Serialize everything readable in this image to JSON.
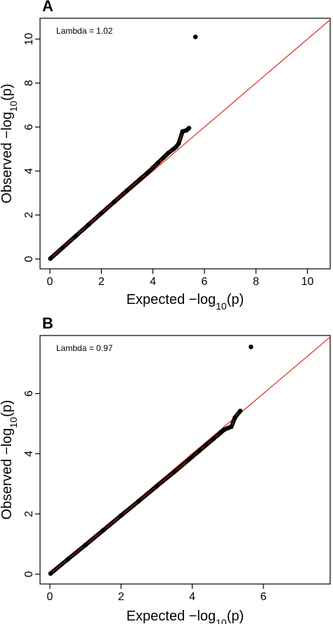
{
  "chart_data": [
    {
      "type": "scatter",
      "panel_label": "A",
      "annotation": "Lambda = 1.02",
      "xlabel_main": "Expected",
      "ylabel_main": "Observed",
      "axis_expression": {
        "prefix": "−log",
        "subscript": "10",
        "suffix": "(p)"
      },
      "xlim": [
        0,
        10.5
      ],
      "ylim": [
        0,
        10.5
      ],
      "xticks": [
        0,
        2,
        4,
        6,
        8,
        10
      ],
      "yticks": [
        0,
        2,
        4,
        6,
        8,
        10
      ],
      "reference_line": {
        "type": "identity",
        "color": "#e0281e"
      },
      "point_color": "#000000",
      "series": [
        {
          "x": [
            0.02,
            0.5,
            1.0,
            1.5,
            2.0,
            2.5,
            3.0,
            3.5,
            3.8,
            4.0,
            4.2,
            4.4,
            4.6,
            4.8,
            4.9,
            5.0,
            5.15,
            5.3,
            5.4,
            5.65
          ],
          "y": [
            0.02,
            0.52,
            1.04,
            1.56,
            2.08,
            2.6,
            3.12,
            3.63,
            3.93,
            4.15,
            4.38,
            4.6,
            4.82,
            5.0,
            5.1,
            5.25,
            5.8,
            5.85,
            5.95,
            10.1
          ]
        }
      ]
    },
    {
      "type": "scatter",
      "panel_label": "B",
      "annotation": "Lambda = 0.97",
      "xlabel_main": "Expected",
      "ylabel_main": "Observed",
      "axis_expression": {
        "prefix": "−log",
        "subscript": "10",
        "suffix": "(p)"
      },
      "xlim": [
        0,
        7.6
      ],
      "ylim": [
        0,
        7.6
      ],
      "xticks": [
        0,
        2,
        4,
        6
      ],
      "yticks": [
        0,
        2,
        4,
        6
      ],
      "reference_line": {
        "type": "identity",
        "color": "#e0281e"
      },
      "point_color": "#000000",
      "series": [
        {
          "x": [
            0.02,
            0.5,
            1.0,
            1.5,
            2.0,
            2.5,
            3.0,
            3.5,
            3.9,
            4.0,
            4.2,
            4.4,
            4.6,
            4.8,
            4.9,
            5.0,
            5.1,
            5.2,
            5.35,
            5.65
          ],
          "y": [
            0.02,
            0.49,
            0.97,
            1.46,
            1.95,
            2.43,
            2.92,
            3.4,
            3.8,
            3.9,
            4.1,
            4.3,
            4.5,
            4.7,
            4.8,
            4.85,
            4.9,
            5.2,
            5.42,
            7.55
          ]
        }
      ]
    }
  ]
}
